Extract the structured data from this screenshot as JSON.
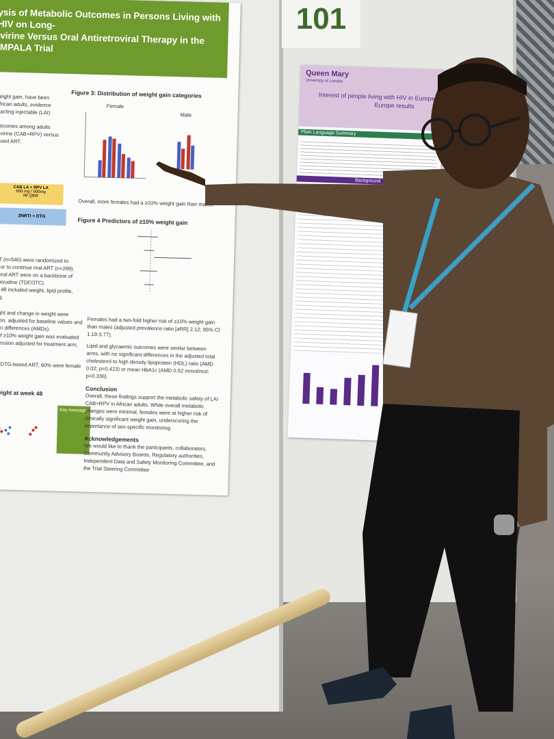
{
  "board_number": "101",
  "left_poster": {
    "title_lines": [
      "ysis of Metabolic Outcomes in Persons Living with HIV on Long-",
      "ivirine Versus Oral Antiretroviral Therapy in the IMPALA Trial"
    ],
    "body_intro": [
      "weight gain, have been",
      "African adults, evidence",
      "g-acting injectable (LAI)",
      "outcomes among adults",
      "ipivirine (CAB+RPV) versus",
      "based ART."
    ],
    "diagram": [
      "CAB LA + RPV LA",
      "600 mg / 900mg",
      "IM Q8W",
      "2NRTI + DTG"
    ],
    "methods": [
      "ART (n=540) were randomized to",
      "71) or to continue oral ART (n=269).",
      "nd oral ART were on a backbone of",
      "/lamivudine (TDF/3TC).",
      "eek 48 included weight, lipid profile,",
      "sting."
    ],
    "analysis": [
      "weight and change in weight were",
      "ession, adjusted for baseline values and",
      "mean differences (AMDs).",
      "isk of ≥10% weight gain was evaluated",
      "regression adjusted for treatment arm,"
    ],
    "results_start": "s on DTG-based ART, 60% were female and",
    "week48_heading": "n weight at week 48",
    "key_message": "Key message:",
    "figure3": {
      "title": "Figure 3: Distribution of weight gain categories",
      "labels": [
        "Female",
        "Male"
      ],
      "caption": "Overall, more females had a ≥10% weight gain than males."
    },
    "figure4": {
      "title": "Figure 4 Predictors of ≥10% weight gain"
    },
    "results_text": [
      "Females had a two-fold higher risk of ≥10% weight gain than males (adjusted prevalence ratio [aRR] 2.12; 95% CI 1.19-3.77).",
      "Lipid and glycaemic outcomes were similar between arms, with no significant differences in the adjusted total cholesterol to high density lipoprotein (HDL) ratio (AMD 0.02; p=0.423) or mean HbA1c (AMD 0.52 mmol/mol; p=0.336)."
    ],
    "conclusion": {
      "heading": "Conclusion",
      "text": "Overall, these findings support the metabolic safety of LAI CAB+RPV in African adults. While overall metabolic changes were minimal, females were at higher risk of clinically significant weight gain, underscoring the importance of sex-specific monitoring."
    },
    "acknowledgements": {
      "heading": "Acknowledgements",
      "text": "We would like to thank the participants, collaborators, Community Advisory Boards, Regulatory authorities, Independent Data and Safety Monitoring Committee, and the Trial Steering Committee"
    }
  },
  "right_poster": {
    "institution": "Queen Mary",
    "university": "University of London",
    "title_lines": [
      "Interest of people living with HIV in Europe in future long-a",
      "Europe results"
    ],
    "sections": [
      "Plain Language Summary",
      "Background"
    ]
  }
}
